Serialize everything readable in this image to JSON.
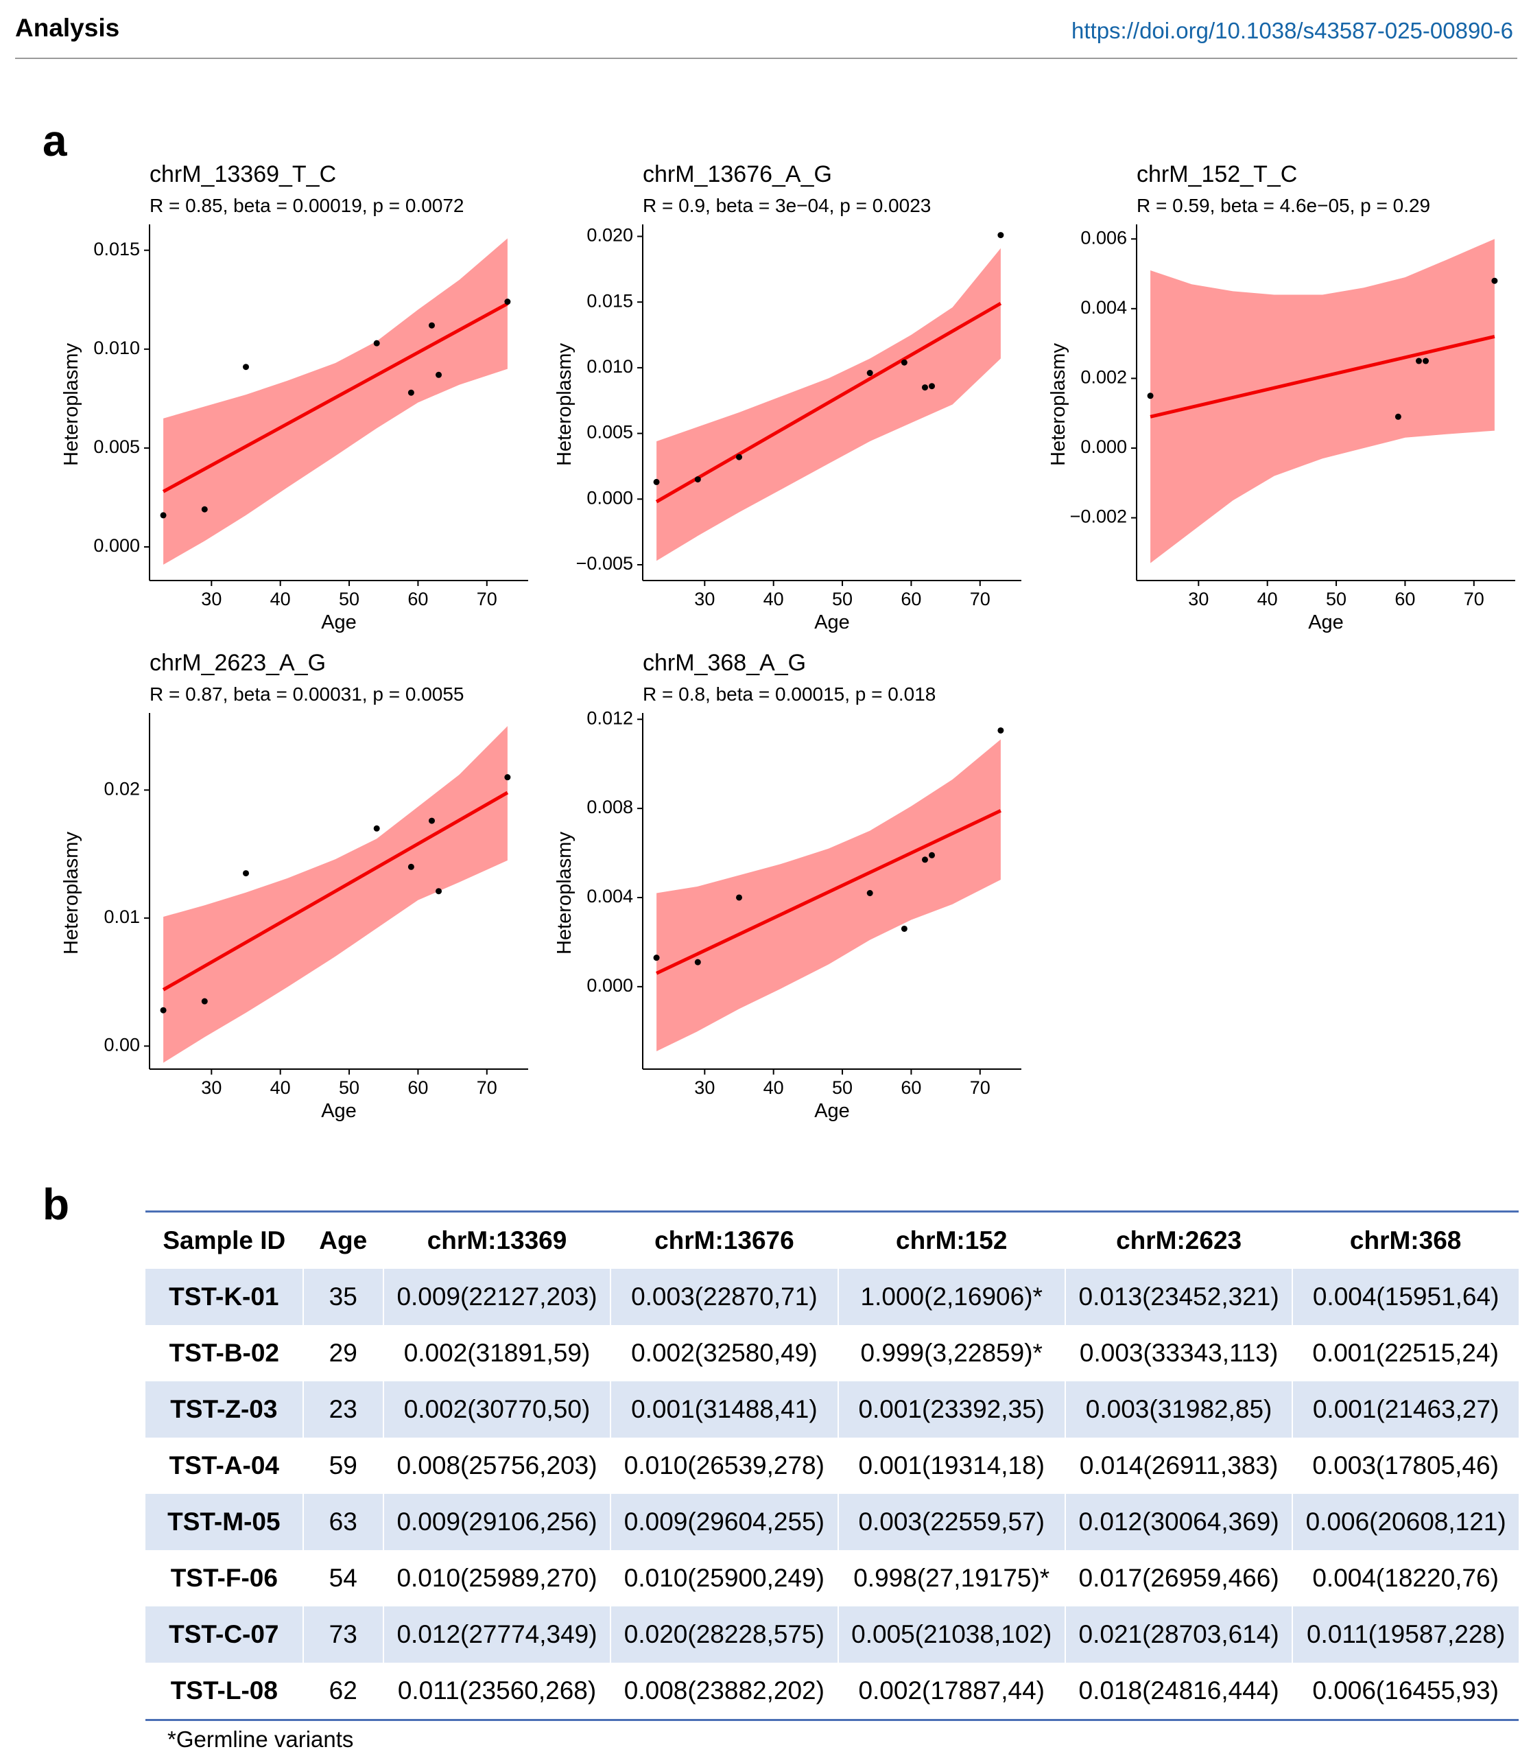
{
  "header": {
    "section": "Analysis",
    "doi": "https://doi.org/10.1038/s43587-025-00890-6"
  },
  "panel_a": {
    "label": "a"
  },
  "panel_b": {
    "label": "b"
  },
  "chart_data": [
    {
      "type": "scatter",
      "title": "chrM_13369_T_C",
      "subtitle": "R = 0.85, beta = 0.00019, p = 0.0072",
      "xlabel": "Age",
      "ylabel": "Heteroplasmy",
      "xlim": [
        21,
        76
      ],
      "ylim": [
        -0.0017,
        0.0161
      ],
      "xticks": [
        30,
        40,
        50,
        60,
        70
      ],
      "yticks": [
        0.0,
        0.005,
        0.01,
        0.015
      ],
      "ytick_labels": [
        "0.000",
        "0.005",
        "0.010",
        "0.015"
      ],
      "points": {
        "x": [
          23,
          29,
          35,
          54,
          59,
          62,
          63,
          73
        ],
        "y": [
          0.0016,
          0.0019,
          0.0091,
          0.0103,
          0.0078,
          0.0112,
          0.0087,
          0.0124
        ]
      },
      "fit": {
        "x": [
          23,
          73
        ],
        "y": [
          0.0028,
          0.0123
        ]
      },
      "ci": {
        "x": [
          23,
          29,
          35,
          41,
          48,
          54,
          60,
          66,
          73
        ],
        "upper": [
          0.0065,
          0.0071,
          0.0077,
          0.0084,
          0.0093,
          0.0104,
          0.012,
          0.0135,
          0.0156
        ],
        "lower": [
          -0.0009,
          0.0003,
          0.0016,
          0.003,
          0.0046,
          0.006,
          0.0073,
          0.0082,
          0.009
        ]
      },
      "colors": {
        "fit": "#f20000",
        "band": "#ff9a9a",
        "point": "#000000"
      }
    },
    {
      "type": "scatter",
      "title": "chrM_13676_A_G",
      "subtitle": "R = 0.9, beta = 3e−04, p = 0.0023",
      "xlabel": "Age",
      "ylabel": "Heteroplasmy",
      "xlim": [
        21,
        76
      ],
      "ylim": [
        -0.0062,
        0.0206
      ],
      "xticks": [
        30,
        40,
        50,
        60,
        70
      ],
      "yticks": [
        -0.005,
        0.0,
        0.005,
        0.01,
        0.015,
        0.02
      ],
      "ytick_labels": [
        "−0.005",
        "0.000",
        "0.005",
        "0.010",
        "0.015",
        "0.020"
      ],
      "points": {
        "x": [
          23,
          29,
          35,
          54,
          59,
          62,
          63,
          73
        ],
        "y": [
          0.0013,
          0.0015,
          0.0032,
          0.0096,
          0.0104,
          0.0085,
          0.0086,
          0.0201
        ]
      },
      "fit": {
        "x": [
          23,
          73
        ],
        "y": [
          -0.0002,
          0.0149
        ]
      },
      "ci": {
        "x": [
          23,
          29,
          35,
          41,
          48,
          54,
          60,
          66,
          73
        ],
        "upper": [
          0.0044,
          0.0055,
          0.0066,
          0.0078,
          0.0092,
          0.0107,
          0.0125,
          0.0146,
          0.0191
        ],
        "lower": [
          -0.0047,
          -0.0028,
          -0.001,
          0.0007,
          0.0027,
          0.0044,
          0.0058,
          0.0072,
          0.0107
        ]
      },
      "colors": {
        "fit": "#f20000",
        "band": "#ff9a9a",
        "point": "#000000"
      }
    },
    {
      "type": "scatter",
      "title": "chrM_152_T_C",
      "subtitle": "R = 0.59, beta = 4.6e−05, p = 0.29",
      "xlabel": "Age",
      "ylabel": "Heteroplasmy",
      "xlim": [
        21,
        76
      ],
      "ylim": [
        -0.0038,
        0.0063
      ],
      "xticks": [
        30,
        40,
        50,
        60,
        70
      ],
      "yticks": [
        -0.002,
        0.0,
        0.002,
        0.004,
        0.006
      ],
      "ytick_labels": [
        "−0.002",
        "0.000",
        "0.002",
        "0.004",
        "0.006"
      ],
      "points": {
        "x": [
          23,
          59,
          62,
          63,
          73
        ],
        "y": [
          0.0015,
          0.0009,
          0.0025,
          0.0025,
          0.0048
        ]
      },
      "fit": {
        "x": [
          23,
          73
        ],
        "y": [
          0.0009,
          0.0032
        ]
      },
      "ci": {
        "x": [
          23,
          29,
          35,
          41,
          48,
          54,
          60,
          66,
          73
        ],
        "upper": [
          0.0051,
          0.0047,
          0.0045,
          0.0044,
          0.0044,
          0.0046,
          0.0049,
          0.0054,
          0.006
        ],
        "lower": [
          -0.0033,
          -0.0024,
          -0.0015,
          -0.0008,
          -0.0003,
          0.0,
          0.0003,
          0.0004,
          0.0005
        ]
      },
      "colors": {
        "fit": "#f20000",
        "band": "#ff9a9a",
        "point": "#000000"
      }
    },
    {
      "type": "scatter",
      "title": "chrM_2623_A_G",
      "subtitle": "R = 0.87, beta = 0.00031, p = 0.0055",
      "xlabel": "Age",
      "ylabel": "Heteroplasmy",
      "xlim": [
        21,
        76
      ],
      "ylim": [
        -0.0018,
        0.0257
      ],
      "xticks": [
        30,
        40,
        50,
        60,
        70
      ],
      "yticks": [
        0.0,
        0.01,
        0.02
      ],
      "ytick_labels": [
        "0.00",
        "0.01",
        "0.02"
      ],
      "points": {
        "x": [
          23,
          29,
          35,
          54,
          59,
          62,
          63,
          73
        ],
        "y": [
          0.0028,
          0.0035,
          0.0135,
          0.017,
          0.014,
          0.0176,
          0.0121,
          0.021
        ]
      },
      "fit": {
        "x": [
          23,
          73
        ],
        "y": [
          0.0044,
          0.0198
        ]
      },
      "ci": {
        "x": [
          23,
          29,
          35,
          41,
          48,
          54,
          60,
          66,
          73
        ],
        "upper": [
          0.0101,
          0.011,
          0.012,
          0.0131,
          0.0146,
          0.0162,
          0.0187,
          0.0212,
          0.025
        ],
        "lower": [
          -0.0013,
          0.0007,
          0.0026,
          0.0046,
          0.007,
          0.0092,
          0.0114,
          0.0128,
          0.0145
        ]
      },
      "colors": {
        "fit": "#f20000",
        "band": "#ff9a9a",
        "point": "#000000"
      }
    },
    {
      "type": "scatter",
      "title": "chrM_368_A_G",
      "subtitle": "R = 0.8, beta = 0.00015, p = 0.018",
      "xlabel": "Age",
      "ylabel": "Heteroplasmy",
      "xlim": [
        21,
        76
      ],
      "ylim": [
        -0.0037,
        0.0121
      ],
      "xticks": [
        30,
        40,
        50,
        60,
        70
      ],
      "yticks": [
        0.0,
        0.004,
        0.008,
        0.012
      ],
      "ytick_labels": [
        "0.000",
        "0.004",
        "0.008",
        "0.012"
      ],
      "points": {
        "x": [
          23,
          29,
          35,
          54,
          59,
          62,
          63,
          73
        ],
        "y": [
          0.0013,
          0.0011,
          0.004,
          0.0042,
          0.0026,
          0.0057,
          0.0059,
          0.0115
        ]
      },
      "fit": {
        "x": [
          23,
          73
        ],
        "y": [
          0.0006,
          0.0079
        ]
      },
      "ci": {
        "x": [
          23,
          29,
          35,
          41,
          48,
          54,
          60,
          66,
          73
        ],
        "upper": [
          0.0042,
          0.0045,
          0.005,
          0.0055,
          0.0062,
          0.007,
          0.0081,
          0.0093,
          0.0111
        ],
        "lower": [
          -0.0029,
          -0.002,
          -0.001,
          -0.0001,
          0.001,
          0.0021,
          0.003,
          0.0037,
          0.0048
        ]
      },
      "colors": {
        "fit": "#f20000",
        "band": "#ff9a9a",
        "point": "#000000"
      }
    }
  ],
  "table": {
    "columns": [
      "Sample ID",
      "Age",
      "chrM:13369",
      "chrM:13676",
      "chrM:152",
      "chrM:2623",
      "chrM:368"
    ],
    "rows": [
      [
        "TST-K-01",
        "35",
        "0.009(22127,203)",
        "0.003(22870,71)",
        "1.000(2,16906)*",
        "0.013(23452,321)",
        "0.004(15951,64)"
      ],
      [
        "TST-B-02",
        "29",
        "0.002(31891,59)",
        "0.002(32580,49)",
        "0.999(3,22859)*",
        "0.003(33343,113)",
        "0.001(22515,24)"
      ],
      [
        "TST-Z-03",
        "23",
        "0.002(30770,50)",
        "0.001(31488,41)",
        "0.001(23392,35)",
        "0.003(31982,85)",
        "0.001(21463,27)"
      ],
      [
        "TST-A-04",
        "59",
        "0.008(25756,203)",
        "0.010(26539,278)",
        "0.001(19314,18)",
        "0.014(26911,383)",
        "0.003(17805,46)"
      ],
      [
        "TST-M-05",
        "63",
        "0.009(29106,256)",
        "0.009(29604,255)",
        "0.003(22559,57)",
        "0.012(30064,369)",
        "0.006(20608,121)"
      ],
      [
        "TST-F-06",
        "54",
        "0.010(25989,270)",
        "0.010(25900,249)",
        "0.998(27,19175)*",
        "0.017(26959,466)",
        "0.004(18220,76)"
      ],
      [
        "TST-C-07",
        "73",
        "0.012(27774,349)",
        "0.020(28228,575)",
        "0.005(21038,102)",
        "0.021(28703,614)",
        "0.011(19587,228)"
      ],
      [
        "TST-L-08",
        "62",
        "0.011(23560,268)",
        "0.008(23882,202)",
        "0.002(17887,44)",
        "0.018(24816,444)",
        "0.006(16455,93)"
      ]
    ],
    "footnote": "*Germline variants"
  }
}
